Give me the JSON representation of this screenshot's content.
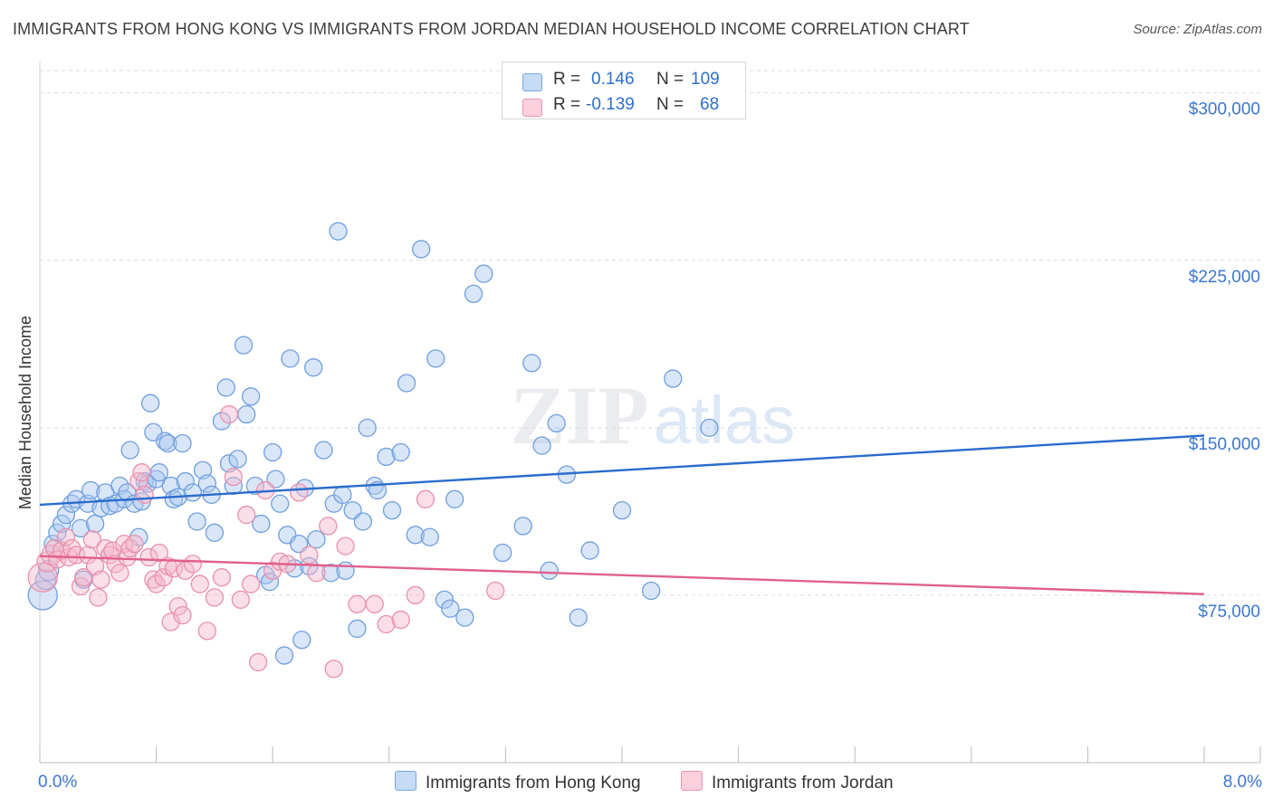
{
  "title": "IMMIGRANTS FROM HONG KONG VS IMMIGRANTS FROM JORDAN MEDIAN HOUSEHOLD INCOME CORRELATION CHART",
  "source": "Source: ZipAtlas.com",
  "watermark": {
    "zip": "ZIP",
    "atlas": "atlas"
  },
  "legend": {
    "rows": [
      {
        "r_label": "R =",
        "r_value": "0.146",
        "n_label": "N =",
        "n_value": "109",
        "color": "#aac8f0"
      },
      {
        "r_label": "R =",
        "r_value": "-0.139",
        "n_label": "N =",
        "n_value": "68",
        "color": "#f5b8cb"
      }
    ]
  },
  "chart_data": {
    "type": "scatter",
    "title": "IMMIGRANTS FROM HONG KONG VS IMMIGRANTS FROM JORDAN MEDIAN HOUSEHOLD INCOME CORRELATION CHART",
    "xlabel": "",
    "ylabel": "Median Household Income",
    "xlim": [
      0,
      8
    ],
    "ylim": [
      0,
      310000
    ],
    "x_tick_labels": [
      "0.0%",
      "8.0%"
    ],
    "y_ticks": [
      75000,
      150000,
      225000,
      300000
    ],
    "y_tick_labels": [
      "$75,000",
      "$150,000",
      "$225,000",
      "$300,000"
    ],
    "grid": true,
    "legend_position": "top-center",
    "series": [
      {
        "name": "Immigrants from Hong Kong",
        "color": "#aac8f0",
        "stroke": "#6f9fde",
        "trend": {
          "x": [
            0,
            8
          ],
          "y": [
            115500,
            146500
          ],
          "color": "#2a6ccc"
        },
        "points": [
          [
            0.02,
            75000
          ],
          [
            0.04,
            82000
          ],
          [
            0.06,
            86000
          ],
          [
            0.09,
            98000
          ],
          [
            0.12,
            103000
          ],
          [
            0.15,
            107000
          ],
          [
            0.18,
            111000
          ],
          [
            0.22,
            116000
          ],
          [
            0.25,
            118000
          ],
          [
            0.28,
            105000
          ],
          [
            0.3,
            82000
          ],
          [
            0.33,
            116000
          ],
          [
            0.35,
            122000
          ],
          [
            0.38,
            107000
          ],
          [
            0.42,
            114000
          ],
          [
            0.45,
            121000
          ],
          [
            0.48,
            115000
          ],
          [
            0.52,
            116000
          ],
          [
            0.55,
            124000
          ],
          [
            0.58,
            118000
          ],
          [
            0.6,
            121000
          ],
          [
            0.62,
            140000
          ],
          [
            0.65,
            116000
          ],
          [
            0.68,
            101000
          ],
          [
            0.7,
            117000
          ],
          [
            0.72,
            126000
          ],
          [
            0.74,
            125000
          ],
          [
            0.76,
            161000
          ],
          [
            0.78,
            148000
          ],
          [
            0.8,
            127000
          ],
          [
            0.82,
            130000
          ],
          [
            0.86,
            144000
          ],
          [
            0.88,
            143000
          ],
          [
            0.9,
            124000
          ],
          [
            0.92,
            118000
          ],
          [
            0.95,
            119000
          ],
          [
            0.98,
            143000
          ],
          [
            1.0,
            126000
          ],
          [
            1.05,
            121000
          ],
          [
            1.08,
            108000
          ],
          [
            1.12,
            131000
          ],
          [
            1.15,
            125000
          ],
          [
            1.18,
            120000
          ],
          [
            1.2,
            103000
          ],
          [
            1.25,
            153000
          ],
          [
            1.28,
            168000
          ],
          [
            1.3,
            134000
          ],
          [
            1.33,
            124000
          ],
          [
            1.36,
            136000
          ],
          [
            1.4,
            187000
          ],
          [
            1.42,
            156000
          ],
          [
            1.45,
            164000
          ],
          [
            1.48,
            124000
          ],
          [
            1.52,
            107000
          ],
          [
            1.55,
            84000
          ],
          [
            1.58,
            81000
          ],
          [
            1.6,
            139000
          ],
          [
            1.62,
            127000
          ],
          [
            1.65,
            116000
          ],
          [
            1.68,
            48000
          ],
          [
            1.7,
            102000
          ],
          [
            1.72,
            181000
          ],
          [
            1.75,
            87000
          ],
          [
            1.78,
            98000
          ],
          [
            1.8,
            55000
          ],
          [
            1.82,
            123000
          ],
          [
            1.85,
            88000
          ],
          [
            1.88,
            177000
          ],
          [
            1.9,
            100000
          ],
          [
            1.95,
            140000
          ],
          [
            2.0,
            85000
          ],
          [
            2.02,
            116000
          ],
          [
            2.05,
            238000
          ],
          [
            2.08,
            120000
          ],
          [
            2.1,
            86000
          ],
          [
            2.15,
            113000
          ],
          [
            2.18,
            60000
          ],
          [
            2.22,
            108000
          ],
          [
            2.25,
            150000
          ],
          [
            2.3,
            124000
          ],
          [
            2.32,
            122000
          ],
          [
            2.38,
            137000
          ],
          [
            2.42,
            113000
          ],
          [
            2.48,
            139000
          ],
          [
            2.52,
            170000
          ],
          [
            2.58,
            102000
          ],
          [
            2.62,
            230000
          ],
          [
            2.68,
            101000
          ],
          [
            2.72,
            181000
          ],
          [
            2.78,
            73000
          ],
          [
            2.82,
            69000
          ],
          [
            2.85,
            118000
          ],
          [
            2.92,
            65000
          ],
          [
            2.98,
            210000
          ],
          [
            3.05,
            219000
          ],
          [
            3.18,
            94000
          ],
          [
            3.32,
            106000
          ],
          [
            3.38,
            179000
          ],
          [
            3.45,
            142000
          ],
          [
            3.5,
            86000
          ],
          [
            3.55,
            152000
          ],
          [
            3.62,
            129000
          ],
          [
            3.7,
            65000
          ],
          [
            3.78,
            95000
          ],
          [
            4.0,
            113000
          ],
          [
            4.2,
            77000
          ],
          [
            4.35,
            172000
          ],
          [
            4.6,
            150000
          ]
        ]
      },
      {
        "name": "Immigrants from Jordan",
        "color": "#f5b8cb",
        "stroke": "#e891ac",
        "trend": {
          "x": [
            0,
            8
          ],
          "y": [
            92500,
            75500
          ],
          "color": "#e0608e"
        },
        "points": [
          [
            0.02,
            83000
          ],
          [
            0.05,
            90000
          ],
          [
            0.08,
            93000
          ],
          [
            0.1,
            96000
          ],
          [
            0.12,
            91000
          ],
          [
            0.15,
            95000
          ],
          [
            0.18,
            101000
          ],
          [
            0.2,
            92000
          ],
          [
            0.22,
            96000
          ],
          [
            0.25,
            93000
          ],
          [
            0.28,
            79000
          ],
          [
            0.3,
            83000
          ],
          [
            0.33,
            93000
          ],
          [
            0.36,
            100000
          ],
          [
            0.38,
            88000
          ],
          [
            0.4,
            74000
          ],
          [
            0.42,
            82000
          ],
          [
            0.45,
            96000
          ],
          [
            0.48,
            93000
          ],
          [
            0.5,
            95000
          ],
          [
            0.52,
            89000
          ],
          [
            0.55,
            85000
          ],
          [
            0.58,
            98000
          ],
          [
            0.6,
            92000
          ],
          [
            0.62,
            96000
          ],
          [
            0.65,
            98000
          ],
          [
            0.68,
            126000
          ],
          [
            0.7,
            130000
          ],
          [
            0.72,
            120000
          ],
          [
            0.75,
            92000
          ],
          [
            0.78,
            82000
          ],
          [
            0.8,
            80000
          ],
          [
            0.82,
            94000
          ],
          [
            0.85,
            83000
          ],
          [
            0.88,
            88000
          ],
          [
            0.9,
            63000
          ],
          [
            0.92,
            87000
          ],
          [
            0.95,
            70000
          ],
          [
            0.98,
            66000
          ],
          [
            1.0,
            86000
          ],
          [
            1.05,
            89000
          ],
          [
            1.1,
            80000
          ],
          [
            1.15,
            59000
          ],
          [
            1.2,
            74000
          ],
          [
            1.25,
            83000
          ],
          [
            1.3,
            156000
          ],
          [
            1.33,
            128000
          ],
          [
            1.38,
            73000
          ],
          [
            1.42,
            111000
          ],
          [
            1.45,
            80000
          ],
          [
            1.5,
            45000
          ],
          [
            1.55,
            122000
          ],
          [
            1.6,
            86000
          ],
          [
            1.65,
            90000
          ],
          [
            1.7,
            89000
          ],
          [
            1.78,
            121000
          ],
          [
            1.85,
            93000
          ],
          [
            1.9,
            85000
          ],
          [
            1.98,
            106000
          ],
          [
            2.02,
            42000
          ],
          [
            2.1,
            97000
          ],
          [
            2.18,
            71000
          ],
          [
            2.3,
            71000
          ],
          [
            2.38,
            62000
          ],
          [
            2.48,
            64000
          ],
          [
            2.58,
            75000
          ],
          [
            2.65,
            118000
          ],
          [
            3.13,
            77000
          ]
        ]
      }
    ]
  },
  "bottom_legend": [
    "Immigrants from Hong Kong",
    "Immigrants from Jordan"
  ]
}
